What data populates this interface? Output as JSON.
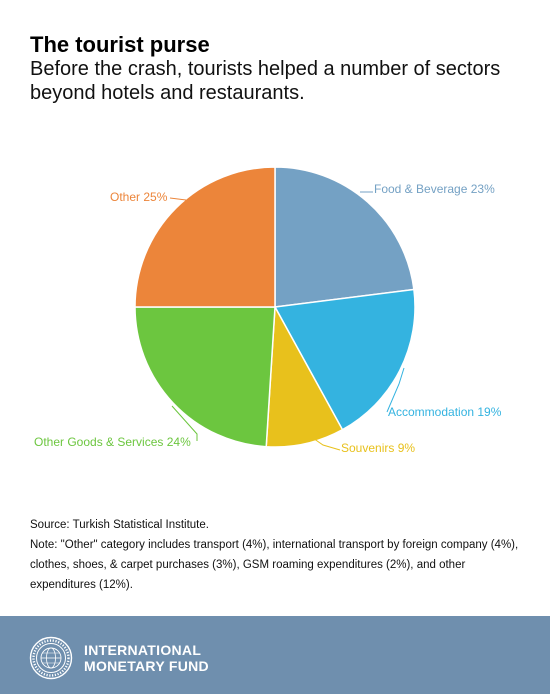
{
  "header": {
    "title": "The tourist purse",
    "subtitle": "Before the crash, tourists helped a number of sectors beyond hotels and restaurants."
  },
  "chart_data": {
    "type": "pie",
    "title": "The tourist purse",
    "start_angle_deg": 0,
    "direction": "clockwise",
    "slices": [
      {
        "name": "Food & Beverage",
        "value": 23,
        "label": "Food & Beverage 23%",
        "color": "#74a1c4"
      },
      {
        "name": "Accommodation",
        "value": 19,
        "label": "Accommodation 19%",
        "color": "#34b3e0"
      },
      {
        "name": "Souvenirs",
        "value": 9,
        "label": "Souvenirs 9%",
        "color": "#e8c11c"
      },
      {
        "name": "Other Goods & Services",
        "value": 24,
        "label": "Other Goods & Services 24%",
        "color": "#6cc63f"
      },
      {
        "name": "Other",
        "value": 25,
        "label": "Other 25%",
        "color": "#ec853a"
      }
    ]
  },
  "notes": {
    "source": "Source: Turkish Statistical Institute.",
    "note": "Note: \"Other\" category includes transport (4%), international transport by foreign company (4%), clothes, shoes, & carpet purchases (3%), GSM roaming expenditures (2%), and other expenditures (12%)."
  },
  "footer": {
    "org_line1": "INTERNATIONAL",
    "org_line2": "MONETARY FUND",
    "seal_icon": "imf-seal-icon",
    "background_color": "#6f8fae"
  }
}
